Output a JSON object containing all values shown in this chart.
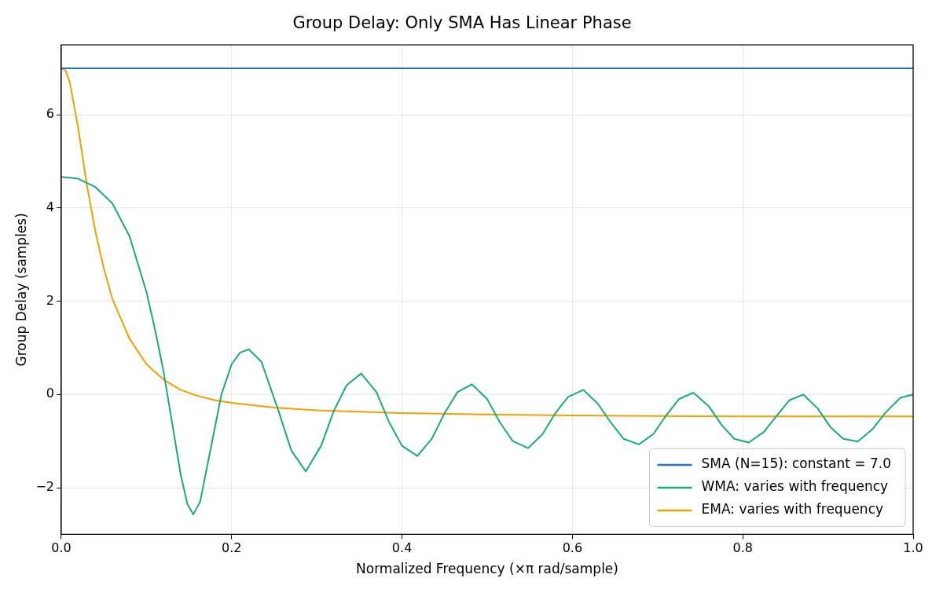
{
  "chart_data": {
    "type": "line",
    "title": "Group Delay: Only SMA Has Linear Phase",
    "xlabel": "Normalized Frequency (×π rad/sample)",
    "ylabel": "Group Delay (samples)",
    "xlim": [
      0,
      1
    ],
    "xticks": [
      {
        "value": 0,
        "label": "0.0"
      },
      {
        "value": 0.2,
        "label": "0.2"
      },
      {
        "value": 0.4,
        "label": "0.4"
      },
      {
        "value": 0.6,
        "label": "0.6"
      },
      {
        "value": 0.8,
        "label": "0.8"
      },
      {
        "value": 1,
        "label": "1.0"
      }
    ],
    "ylim": [
      -3,
      7.5
    ],
    "yticks": [
      {
        "value": -2,
        "label": "−2"
      },
      0,
      2,
      4,
      6
    ],
    "grid": true,
    "legend": "bottom right",
    "marker": "none",
    "line_style": "solid",
    "series": [
      {
        "name": "SMA (N=15): constant = 7.0",
        "color": "#2a6fd6",
        "x": [
          0,
          1
        ],
        "values": [
          7.0,
          7.0
        ]
      },
      {
        "name": "WMA: varies with frequency",
        "color": "#1aab7a",
        "x": [
          0,
          0.02,
          0.04,
          0.06,
          0.08,
          0.1,
          0.11,
          0.12,
          0.13,
          0.14,
          0.148,
          0.155,
          0.163,
          0.175,
          0.188,
          0.2,
          0.21,
          0.22,
          0.235,
          0.255,
          0.27,
          0.287,
          0.305,
          0.32,
          0.335,
          0.352,
          0.37,
          0.385,
          0.4,
          0.418,
          0.435,
          0.45,
          0.465,
          0.482,
          0.5,
          0.515,
          0.53,
          0.548,
          0.565,
          0.58,
          0.595,
          0.613,
          0.63,
          0.645,
          0.66,
          0.678,
          0.695,
          0.71,
          0.725,
          0.742,
          0.76,
          0.775,
          0.79,
          0.807,
          0.825,
          0.84,
          0.855,
          0.871,
          0.888,
          0.903,
          0.918,
          0.935,
          0.952,
          0.968,
          0.985,
          1.0
        ],
        "values": [
          4.67,
          4.63,
          4.45,
          4.1,
          3.4,
          2.2,
          1.4,
          0.5,
          -0.6,
          -1.7,
          -2.35,
          -2.57,
          -2.3,
          -1.2,
          0.0,
          0.65,
          0.9,
          0.97,
          0.7,
          -0.35,
          -1.2,
          -1.65,
          -1.1,
          -0.35,
          0.2,
          0.45,
          0.05,
          -0.6,
          -1.1,
          -1.32,
          -0.95,
          -0.4,
          0.05,
          0.22,
          -0.1,
          -0.6,
          -1.0,
          -1.15,
          -0.85,
          -0.4,
          -0.05,
          0.1,
          -0.2,
          -0.6,
          -0.95,
          -1.07,
          -0.85,
          -0.45,
          -0.1,
          0.04,
          -0.25,
          -0.65,
          -0.95,
          -1.03,
          -0.8,
          -0.45,
          -0.12,
          0.0,
          -0.3,
          -0.7,
          -0.95,
          -1.01,
          -0.75,
          -0.38,
          -0.07,
          0.0
        ]
      },
      {
        "name": "EMA: varies with frequency",
        "color": "#f0a000",
        "x": [
          0,
          0.005,
          0.01,
          0.02,
          0.03,
          0.04,
          0.05,
          0.06,
          0.08,
          0.1,
          0.12,
          0.14,
          0.16,
          0.18,
          0.2,
          0.25,
          0.3,
          0.35,
          0.4,
          0.5,
          0.6,
          0.7,
          0.8,
          0.9,
          1.0
        ],
        "values": [
          7.0,
          6.95,
          6.7,
          5.7,
          4.5,
          3.5,
          2.7,
          2.05,
          1.2,
          0.65,
          0.32,
          0.1,
          -0.03,
          -0.12,
          -0.18,
          -0.28,
          -0.34,
          -0.37,
          -0.4,
          -0.43,
          -0.45,
          -0.46,
          -0.47,
          -0.47,
          -0.47
        ]
      }
    ]
  }
}
